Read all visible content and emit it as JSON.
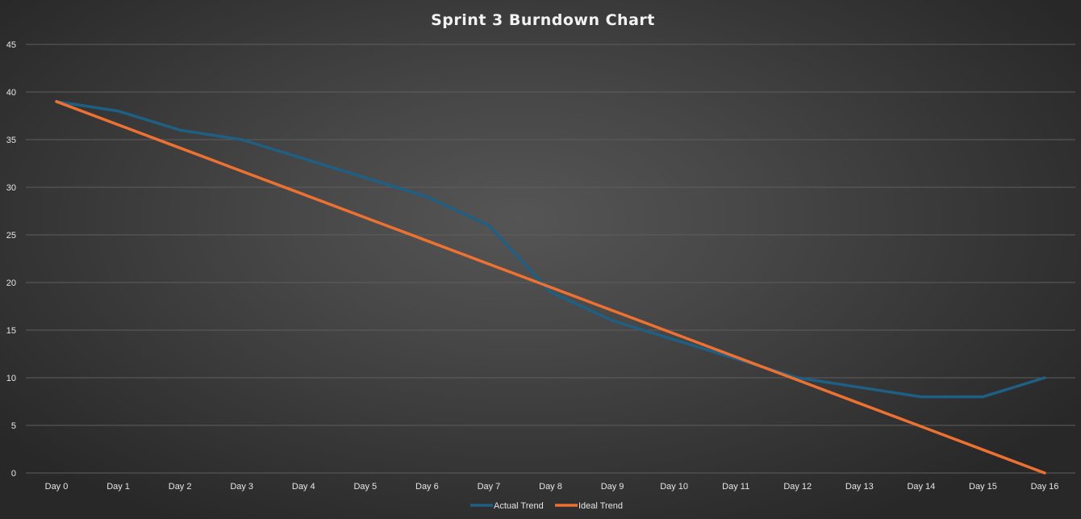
{
  "chart_data": {
    "type": "line",
    "title": "Sprint 3 Burndown Chart",
    "xlabel": "",
    "ylabel": "",
    "categories": [
      "Day 0",
      "Day 1",
      "Day 2",
      "Day 3",
      "Day 4",
      "Day 5",
      "Day 6",
      "Day 7",
      "Day 8",
      "Day 9",
      "Day 10",
      "Day 11",
      "Day 12",
      "Day 13",
      "Day 14",
      "Day 15",
      "Day 16"
    ],
    "ylim": [
      0,
      45
    ],
    "yticks": [
      0,
      5,
      10,
      15,
      20,
      25,
      30,
      35,
      40,
      45
    ],
    "grid": true,
    "legend_position": "bottom",
    "series": [
      {
        "name": "Actual Trend",
        "color": "#1f5f84",
        "values": [
          39,
          38,
          36,
          35,
          33,
          31,
          29,
          26,
          19,
          16,
          14,
          12,
          10,
          9,
          8,
          8,
          10
        ]
      },
      {
        "name": "Ideal Trend",
        "color": "#ec7132",
        "values": [
          39,
          36.56,
          34.13,
          31.69,
          29.25,
          26.81,
          24.38,
          21.94,
          19.5,
          17.06,
          14.63,
          12.19,
          9.75,
          7.31,
          4.88,
          2.44,
          0
        ]
      }
    ]
  }
}
